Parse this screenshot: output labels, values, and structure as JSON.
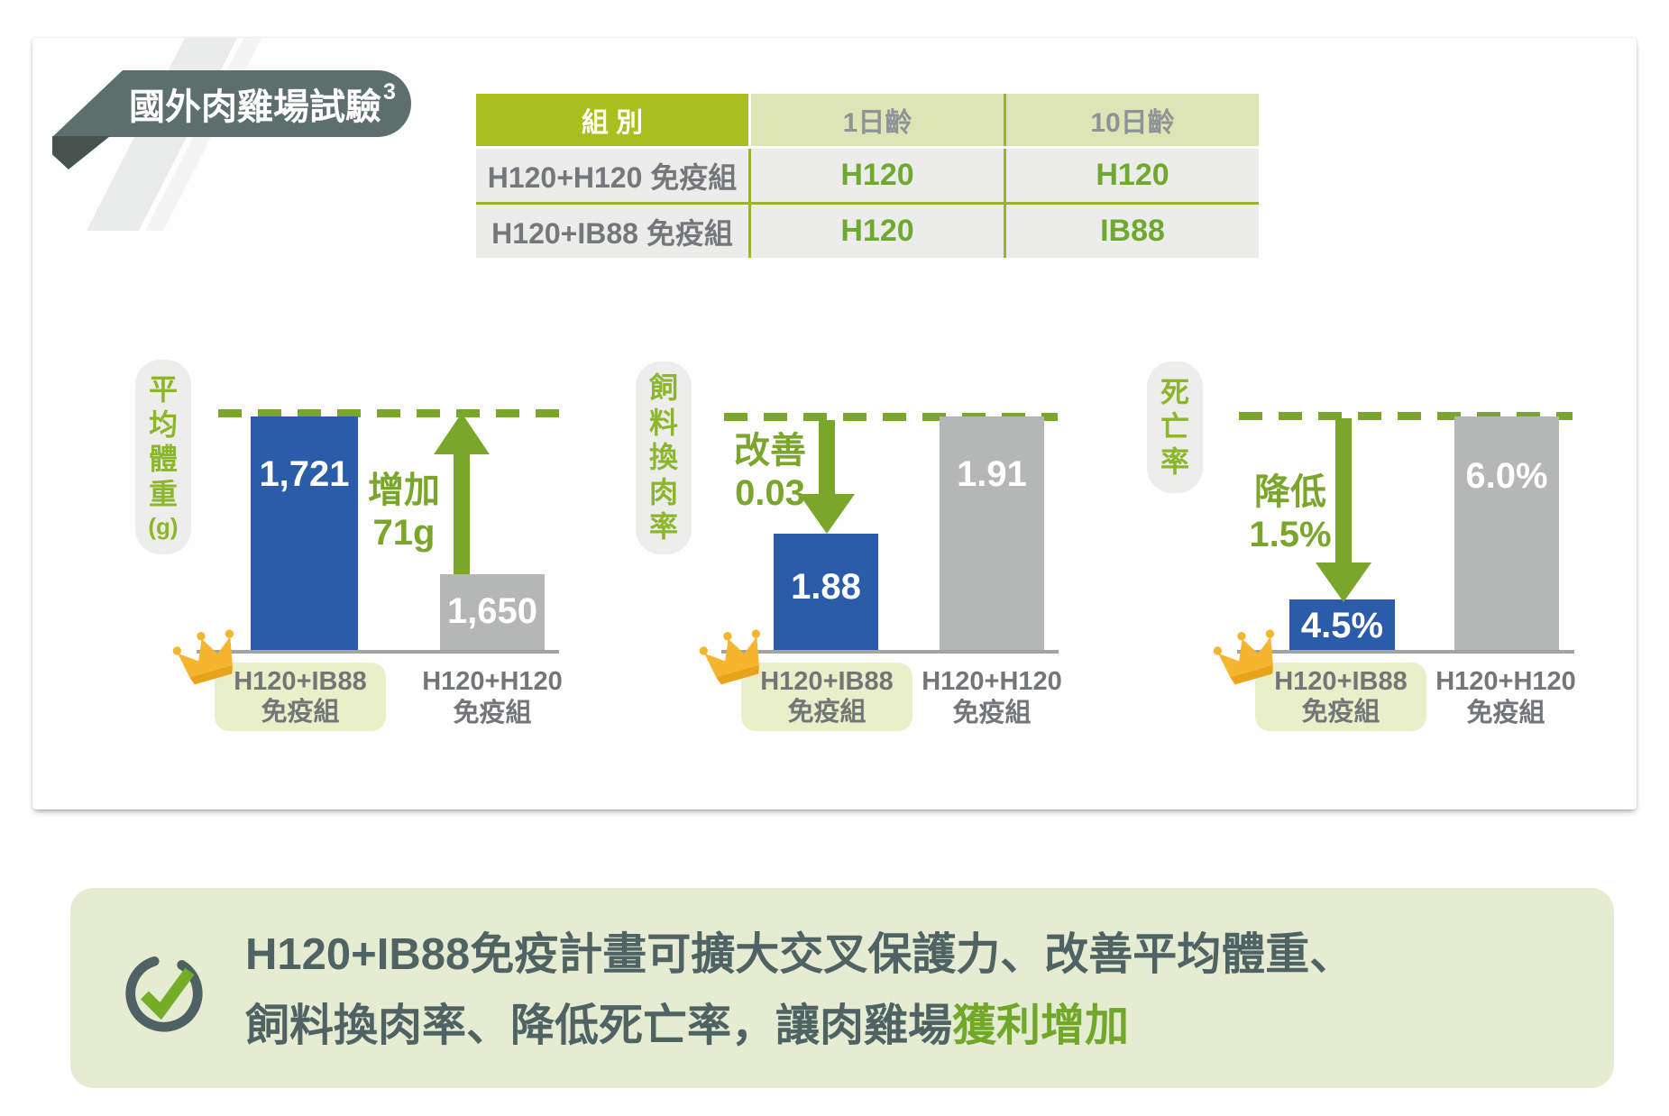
{
  "banner": {
    "title": "國外肉雞場試驗",
    "footnote_marker": "3"
  },
  "table": {
    "headers": [
      "組 別",
      "1日齡",
      "10日齡"
    ],
    "rows": [
      {
        "group": "H120+H120 免疫組",
        "day1": "H120",
        "day10": "H120"
      },
      {
        "group": "H120+IB88 免疫組",
        "day1": "H120",
        "day10": "IB88"
      }
    ]
  },
  "chart_data": [
    {
      "type": "bar",
      "title": "平均體重(g)",
      "axis_label_units": [
        "平",
        "均",
        "體",
        "重",
        "(g)"
      ],
      "categories": [
        "H120+IB88 免疫組",
        "H120+H120 免疫組"
      ],
      "values": [
        1721,
        1650
      ],
      "value_labels": [
        "1,721",
        "1,650"
      ],
      "series_colors": [
        "#2b5ca9",
        "#b5b7b6"
      ],
      "annotation": {
        "lines": [
          "增加",
          "71g"
        ],
        "direction": "up"
      },
      "reference_value": 1721,
      "winner_index": 0,
      "x_labels": [
        [
          "H120+IB88",
          "免疫組"
        ],
        [
          "H120+H120",
          "免疫組"
        ]
      ],
      "legend": false,
      "grid": false
    },
    {
      "type": "bar",
      "title": "飼料換肉率",
      "axis_label_units": [
        "飼",
        "料",
        "換",
        "肉",
        "率"
      ],
      "categories": [
        "H120+IB88 免疫組",
        "H120+H120 免疫組"
      ],
      "values": [
        1.88,
        1.91
      ],
      "value_labels": [
        "1.88",
        "1.91"
      ],
      "series_colors": [
        "#2b5ca9",
        "#b5b7b6"
      ],
      "annotation": {
        "lines": [
          "改善",
          "0.03"
        ],
        "direction": "down"
      },
      "reference_value": 1.91,
      "winner_index": 0,
      "x_labels": [
        [
          "H120+IB88",
          "免疫組"
        ],
        [
          "H120+H120",
          "免疫組"
        ]
      ],
      "legend": false,
      "grid": false
    },
    {
      "type": "bar",
      "title": "死亡率",
      "axis_label_units": [
        "死",
        "亡",
        "率"
      ],
      "categories": [
        "H120+IB88 免疫組",
        "H120+H120 免疫組"
      ],
      "values": [
        4.5,
        6.0
      ],
      "value_labels": [
        "4.5%",
        "6.0%"
      ],
      "series_colors": [
        "#2b5ca9",
        "#b5b7b6"
      ],
      "annotation": {
        "lines": [
          "降低",
          "1.5%"
        ],
        "direction": "down"
      },
      "reference_value": 6.0,
      "winner_index": 0,
      "x_labels": [
        [
          "H120+IB88",
          "免疫組"
        ],
        [
          "H120+H120",
          "免疫組"
        ]
      ],
      "legend": false,
      "grid": false
    }
  ],
  "summary": {
    "line1": "H120+IB88免疫計畫可擴大交叉保護力、改善平均體重、",
    "line2": "飼料換肉率、降低死亡率，讓肉雞場",
    "line2_highlight": "獲利增加"
  },
  "icons": {
    "winner": "crown-icon",
    "summary": "check-circle-icon"
  },
  "colors": {
    "accent_green": "#7ba62c",
    "table_header_green": "#a9bf1e",
    "table_header_light": "#dde5b5",
    "blue_bar": "#2b5ca9",
    "gray_bar": "#b5b7b6",
    "banner_slate": "#5c6f6d",
    "summary_bg": "#e6ecd2",
    "label_pill_bg": "#e9f0c9",
    "crown_gold": "#f5b52e"
  }
}
